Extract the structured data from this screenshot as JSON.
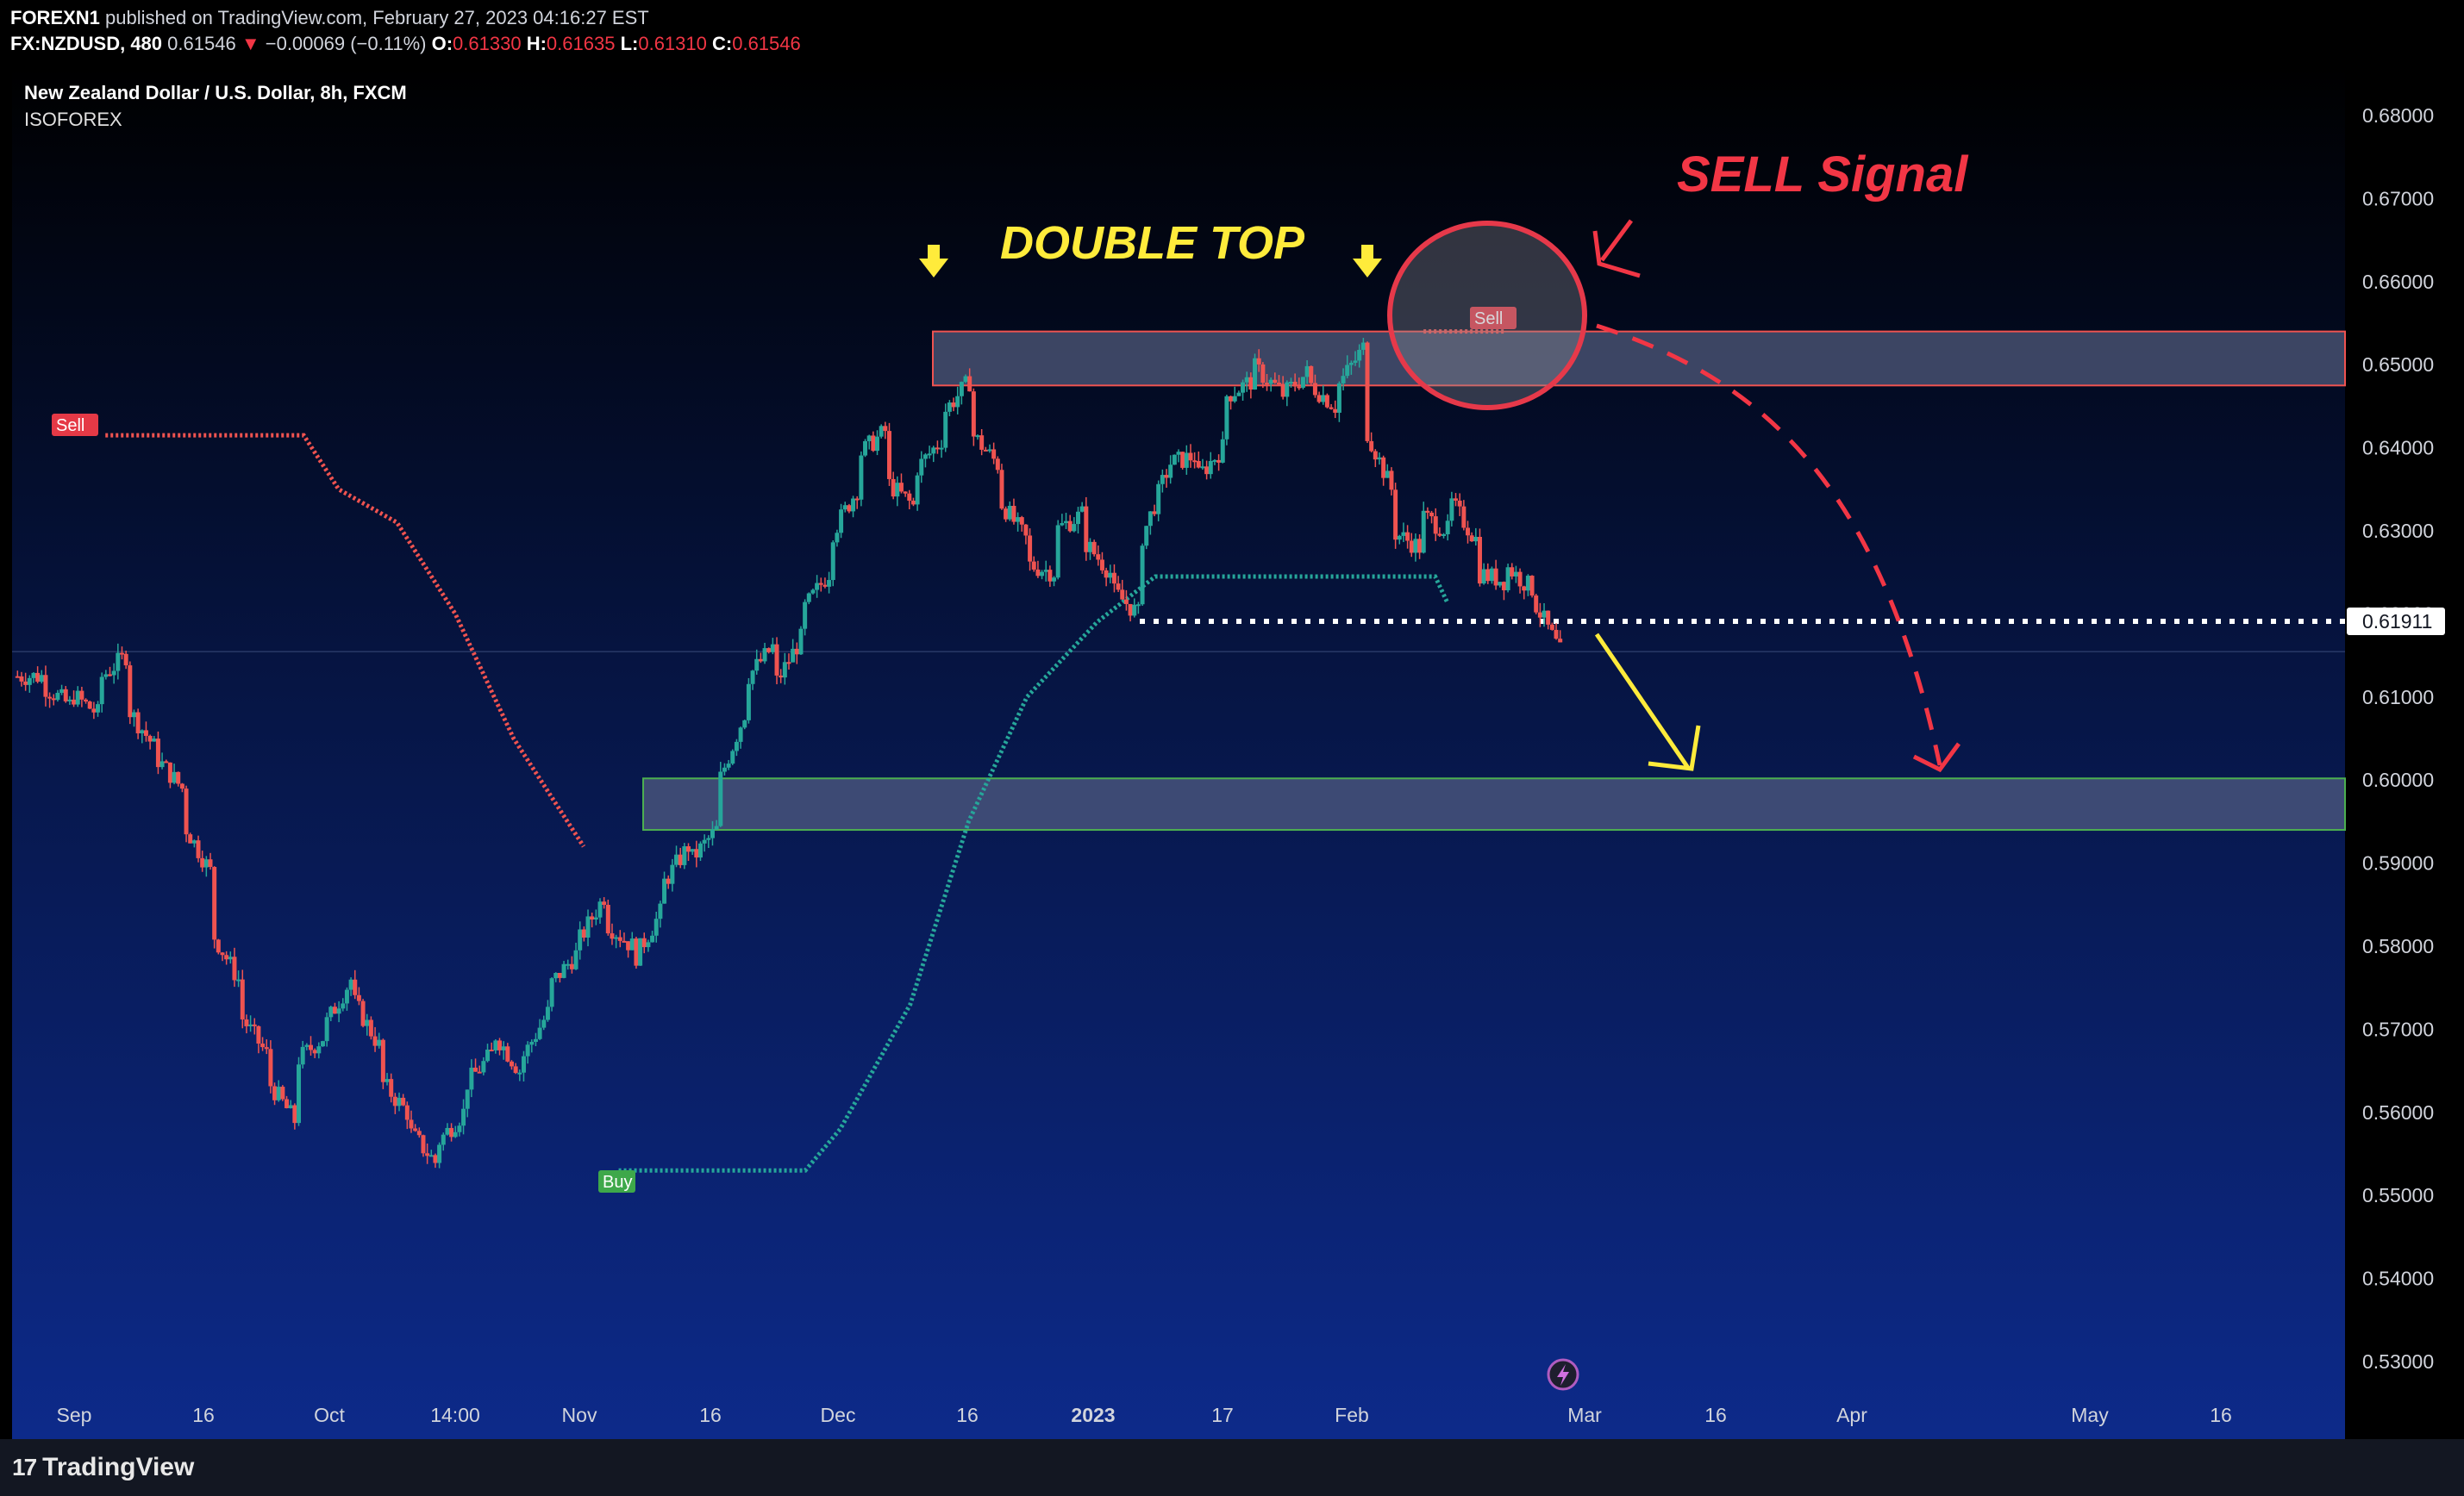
{
  "header": {
    "publisher": "FOREXN1",
    "published_text": "published on TradingView.com, February 27, 2023 04:16:27 EST",
    "symbol": "FX:NZDUSD, 480",
    "last": "0.61546",
    "change_arrow": "▼",
    "change": "−0.00069 (−0.11%)",
    "o_label": "O:",
    "o": "0.61330",
    "h_label": "H:",
    "h": "0.61635",
    "l_label": "L:",
    "l": "0.61310",
    "c_label": "C:",
    "c": "0.61546"
  },
  "legend": {
    "title": "New Zealand Dollar / U.S. Dollar, 8h, FXCM",
    "indicator": "ISOFOREX"
  },
  "annotations": {
    "double_top": "DOUBLE TOP",
    "sell_signal": "SELL Signal",
    "sell_label_1": "Sell",
    "sell_label_2": "Sell",
    "buy_label": "Buy"
  },
  "colors": {
    "up": "#26a69a",
    "down": "#ef5350",
    "annotation_yellow": "#ffeb3b",
    "annotation_red": "#f23645",
    "zone_fill": "#5a6688",
    "bg_top": "#000000",
    "bg_bottom": "#0d2a8a"
  },
  "footer": {
    "brand": "TradingView",
    "brand_icon": "tradingview-logo-icon"
  },
  "chart_data": {
    "type": "candlestick",
    "title": "New Zealand Dollar / U.S. Dollar, 8h, FXCM",
    "y_ticks": [
      "0.68000",
      "0.67000",
      "0.66000",
      "0.65000",
      "0.64000",
      "0.63000",
      "0.62000",
      "0.61000",
      "0.60000",
      "0.59000",
      "0.58000",
      "0.57000",
      "0.56000",
      "0.55000",
      "0.54000",
      "0.53000"
    ],
    "ylim": [
      0.5275,
      0.6835
    ],
    "x_ticks": [
      "Sep",
      "16",
      "Oct",
      "14:00",
      "Nov",
      "16",
      "Dec",
      "16",
      "2023",
      "17",
      "Feb",
      "Mar",
      "16",
      "Apr",
      "May",
      "16"
    ],
    "x_tick_bold": "2023",
    "current_price_label": "0.61911",
    "current_price": 0.61911,
    "close_price_line": 0.61546,
    "resistance_zone": [
      0.6475,
      0.654
    ],
    "support_zone": [
      0.594,
      0.6002
    ],
    "price_path": [
      [
        0.6125,
        0.6125
      ],
      [
        0.6115,
        0.609
      ],
      [
        0.6105,
        0.608
      ],
      [
        0.612,
        0.615
      ],
      [
        0.609,
        0.604
      ],
      [
        0.603,
        0.599
      ],
      [
        0.595,
        0.589
      ],
      [
        0.582,
        0.576
      ],
      [
        0.572,
        0.567
      ],
      [
        0.564,
        0.559
      ],
      [
        0.566,
        0.569
      ],
      [
        0.57,
        0.576
      ],
      [
        0.574,
        0.568
      ],
      [
        0.564,
        0.56
      ],
      [
        0.558,
        0.554
      ],
      [
        0.556,
        0.56
      ],
      [
        0.563,
        0.567
      ],
      [
        0.57,
        0.565
      ],
      [
        0.566,
        0.572
      ],
      [
        0.575,
        0.579
      ],
      [
        0.58,
        0.586
      ],
      [
        0.583,
        0.58
      ],
      [
        0.578,
        0.584
      ],
      [
        0.587,
        0.592
      ],
      [
        0.59,
        0.594
      ],
      [
        0.599,
        0.608
      ],
      [
        0.612,
        0.616
      ],
      [
        0.611,
        0.617
      ],
      [
        0.62,
        0.625
      ],
      [
        0.629,
        0.635
      ],
      [
        0.639,
        0.642
      ],
      [
        0.636,
        0.633
      ],
      [
        0.637,
        0.641
      ],
      [
        0.644,
        0.648
      ],
      [
        0.642,
        0.638
      ],
      [
        0.634,
        0.629
      ],
      [
        0.626,
        0.625
      ],
      [
        0.63,
        0.632
      ],
      [
        0.629,
        0.625
      ],
      [
        0.623,
        0.62
      ],
      [
        0.628,
        0.637
      ],
      [
        0.638,
        0.639
      ],
      [
        0.636,
        0.64
      ],
      [
        0.646,
        0.648
      ],
      [
        0.65,
        0.647
      ],
      [
        0.646,
        0.649
      ],
      [
        0.648,
        0.645
      ],
      [
        0.647,
        0.652
      ],
      [
        0.643,
        0.635
      ],
      [
        0.63,
        0.628
      ],
      [
        0.632,
        0.63
      ],
      [
        0.634,
        0.629
      ],
      [
        0.625,
        0.624
      ],
      [
        0.626,
        0.623
      ],
      [
        0.622,
        0.6154
      ]
    ],
    "trailing_stop_series": [
      {
        "name": "Sell",
        "color": "#ef5350",
        "points": [
          [
            0.04,
            0.6415
          ],
          [
            0.125,
            0.6415
          ],
          [
            0.14,
            0.635
          ],
          [
            0.165,
            0.631
          ],
          [
            0.19,
            0.62
          ],
          [
            0.215,
            0.605
          ],
          [
            0.245,
            0.592
          ]
        ]
      },
      {
        "name": "Buy",
        "color": "#26a69a",
        "points": [
          [
            0.26,
            0.553
          ],
          [
            0.34,
            0.553
          ],
          [
            0.355,
            0.558
          ],
          [
            0.385,
            0.573
          ],
          [
            0.41,
            0.595
          ],
          [
            0.435,
            0.61
          ],
          [
            0.465,
            0.619
          ],
          [
            0.49,
            0.6245
          ],
          [
            0.61,
            0.6245
          ],
          [
            0.615,
            0.6215
          ]
        ]
      },
      {
        "name": "Sell",
        "color": "#ef5350",
        "points": [
          [
            0.605,
            0.654
          ],
          [
            0.64,
            0.654
          ]
        ]
      }
    ],
    "legend_position": "top-left"
  }
}
